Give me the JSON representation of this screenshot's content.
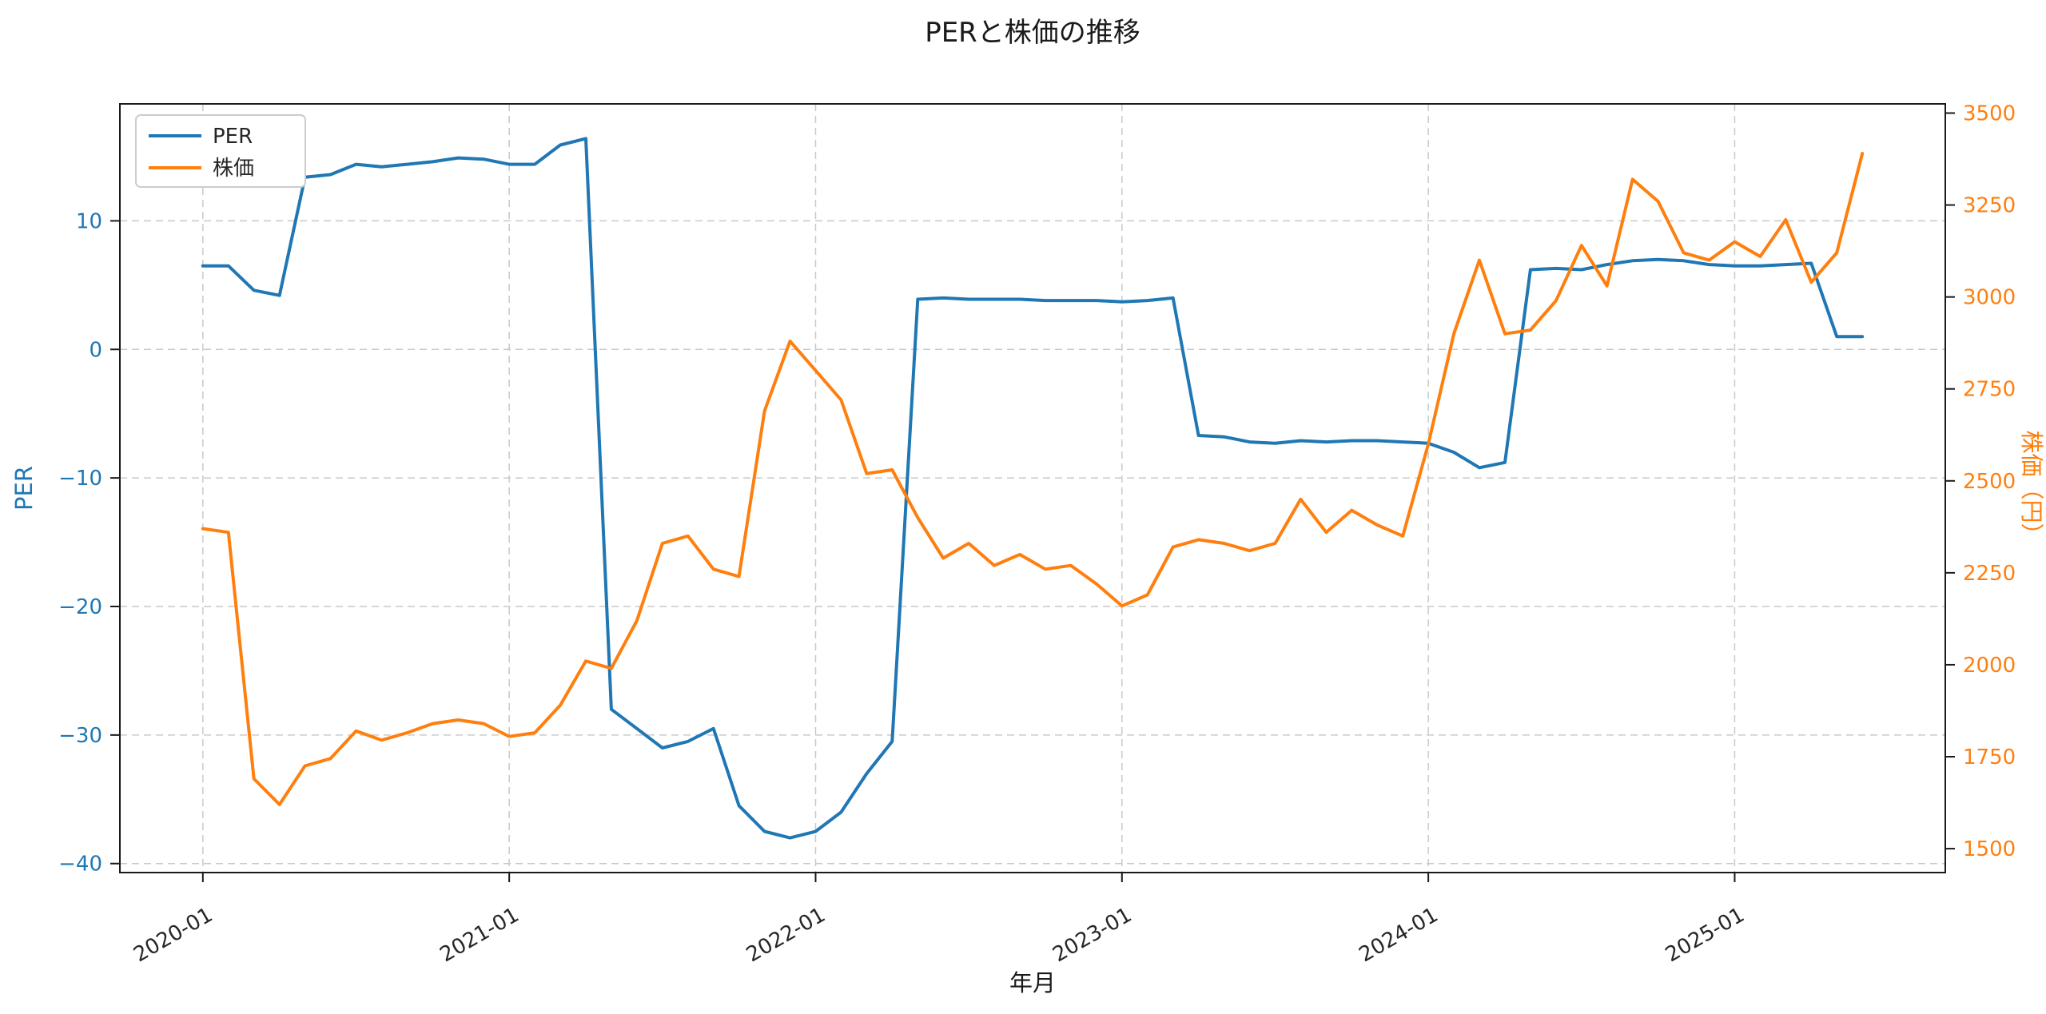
{
  "chart_data": {
    "type": "line",
    "title": "PERと株価の推移",
    "xlabel": "年月",
    "ylabel_left": "PER",
    "ylabel_right": "株価（円）",
    "grid": true,
    "legend": {
      "position": "upper left",
      "entries": [
        "PER",
        "株価"
      ]
    },
    "x_lim": [
      -3.25,
      68.25
    ],
    "x_ticks": {
      "positions": [
        0,
        12,
        24,
        36,
        48,
        60
      ],
      "labels": [
        "2020-01",
        "2021-01",
        "2022-01",
        "2023-01",
        "2024-01",
        "2025-01"
      ]
    },
    "left_axis": {
      "color": "#1f77b4",
      "lim": [
        -40.7,
        19.1
      ],
      "tick_values": [
        10,
        0,
        -10,
        -20,
        -30,
        -40
      ],
      "tick_labels": [
        "10",
        "0",
        "−10",
        "−20",
        "−30",
        "−40"
      ]
    },
    "right_axis": {
      "color": "#ff7f0e",
      "lim": [
        1435,
        3525
      ],
      "tick_values": [
        3500,
        3250,
        3000,
        2750,
        2500,
        2250,
        2000,
        1750,
        1500
      ],
      "tick_labels": [
        "3500",
        "3250",
        "3000",
        "2750",
        "2500",
        "2250",
        "2000",
        "1750",
        "1500"
      ]
    },
    "x": [
      "2020-01",
      "2020-02",
      "2020-03",
      "2020-04",
      "2020-05",
      "2020-06",
      "2020-07",
      "2020-08",
      "2020-09",
      "2020-10",
      "2020-11",
      "2020-12",
      "2021-01",
      "2021-02",
      "2021-03",
      "2021-04",
      "2021-05",
      "2021-06",
      "2021-07",
      "2021-08",
      "2021-09",
      "2021-10",
      "2021-11",
      "2021-12",
      "2022-01",
      "2022-02",
      "2022-03",
      "2022-04",
      "2022-05",
      "2022-06",
      "2022-07",
      "2022-08",
      "2022-09",
      "2022-10",
      "2022-11",
      "2022-12",
      "2023-01",
      "2023-02",
      "2023-03",
      "2023-04",
      "2023-05",
      "2023-06",
      "2023-07",
      "2023-08",
      "2023-09",
      "2023-10",
      "2023-11",
      "2023-12",
      "2024-01",
      "2024-02",
      "2024-03",
      "2024-04",
      "2024-05",
      "2024-06",
      "2024-07",
      "2024-08",
      "2024-09",
      "2024-10",
      "2024-11",
      "2024-12",
      "2025-01",
      "2025-02",
      "2025-03",
      "2025-04",
      "2025-05",
      "2025-06"
    ],
    "series": [
      {
        "name": "PER",
        "axis": "left",
        "color": "#1f77b4",
        "values": [
          6.5,
          6.5,
          4.6,
          4.2,
          13.4,
          13.6,
          14.4,
          14.2,
          14.4,
          14.6,
          14.9,
          14.8,
          14.4,
          14.4,
          15.9,
          16.4,
          -28.0,
          -29.5,
          -31.0,
          -30.5,
          -29.5,
          -35.5,
          -37.5,
          -38.0,
          -37.5,
          -36.0,
          -33.0,
          -30.5,
          3.9,
          4.0,
          3.9,
          3.9,
          3.9,
          3.8,
          3.8,
          3.8,
          3.7,
          3.8,
          4.0,
          -6.7,
          -6.8,
          -7.2,
          -7.3,
          -7.1,
          -7.2,
          -7.1,
          -7.1,
          -7.2,
          -7.3,
          -8.0,
          -9.2,
          -8.8,
          6.2,
          6.3,
          6.2,
          6.6,
          6.9,
          7.0,
          6.9,
          6.6,
          6.5,
          6.5,
          6.6,
          6.7,
          1.0,
          1.0
        ]
      },
      {
        "name": "株価",
        "axis": "right",
        "color": "#ff7f0e",
        "values": [
          2370,
          2360,
          1690,
          1620,
          1725,
          1745,
          1820,
          1795,
          1815,
          1840,
          1850,
          1840,
          1805,
          1815,
          1890,
          2010,
          1990,
          2120,
          2330,
          2350,
          2260,
          2240,
          2690,
          2880,
          2800,
          2720,
          2520,
          2530,
          2400,
          2290,
          2330,
          2270,
          2300,
          2260,
          2270,
          2220,
          2160,
          2190,
          2320,
          2340,
          2330,
          2310,
          2330,
          2450,
          2360,
          2420,
          2380,
          2350,
          2600,
          2900,
          3100,
          2900,
          2910,
          2990,
          3140,
          3030,
          3320,
          3260,
          3120,
          3100,
          3150,
          3110,
          3210,
          3040,
          3120,
          3390
        ]
      }
    ]
  }
}
